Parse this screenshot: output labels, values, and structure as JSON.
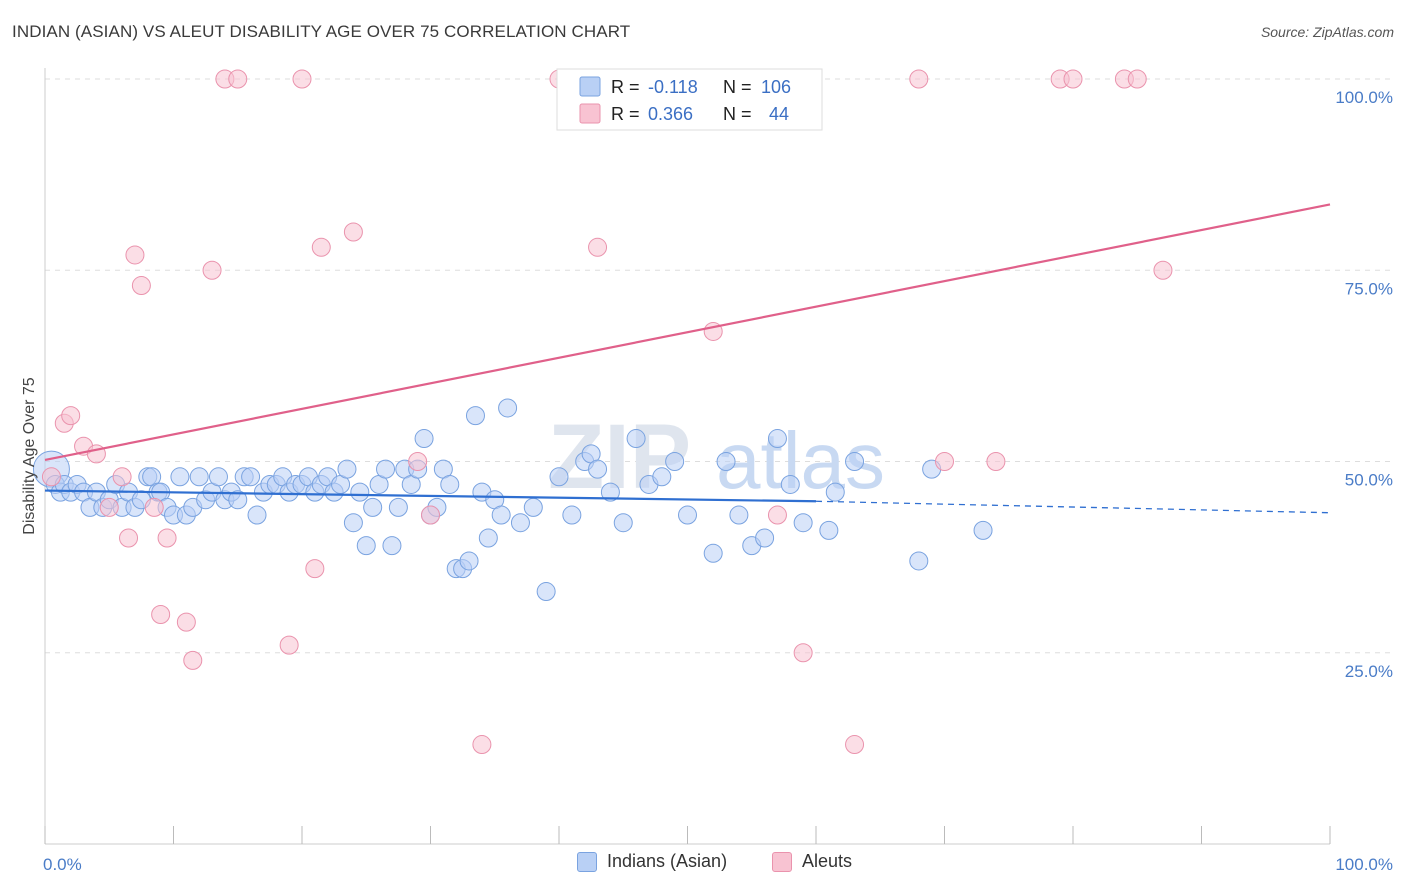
{
  "title": "INDIAN (ASIAN) VS ALEUT DISABILITY AGE OVER 75 CORRELATION CHART",
  "source": "Source: ZipAtlas.com",
  "watermark": {
    "zip": "ZIP",
    "atlas": "atlas"
  },
  "colors": {
    "blue_fill": "#b9d0f5",
    "blue_stroke": "#7aa3e0",
    "blue_line": "#2f6fd1",
    "pink_fill": "#f8c3d2",
    "pink_stroke": "#ea93ad",
    "pink_line": "#e0608a",
    "axis_label": "#4a7cc7",
    "grid": "#dddddd"
  },
  "legend": {
    "rows": [
      {
        "r_label": "R =",
        "r_value": "-0.118",
        "n_label": "N =",
        "n_value": "106"
      },
      {
        "r_label": "R =",
        "r_value": "0.366",
        "n_label": "N =",
        "n_value": "44"
      }
    ]
  },
  "bottom_legend": {
    "series1": "Indians (Asian)",
    "series2": "Aleuts"
  },
  "chart_data": {
    "type": "scatter",
    "title": "INDIAN (ASIAN) VS ALEUT DISABILITY AGE OVER 75 CORRELATION CHART",
    "xlabel": "",
    "ylabel": "Disability Age Over 75",
    "xlim": [
      0,
      100
    ],
    "ylim": [
      0,
      104
    ],
    "x_tick_labels": [
      "0.0%",
      "100.0%"
    ],
    "y_ticks": [
      25,
      50,
      75,
      100
    ],
    "y_tick_labels": [
      "25.0%",
      "50.0%",
      "75.0%",
      "100.0%"
    ],
    "grid": true,
    "series": [
      {
        "name": "Indians (Asian)",
        "r": -0.118,
        "n": 106,
        "trend": {
          "x0": 0,
          "y0": 46.2,
          "x1": 60,
          "y1": 44.8,
          "dashed_to_x": 100,
          "dashed_to_y": 43.3
        },
        "points": [
          [
            0.5,
            49,
            "L"
          ],
          [
            0.8,
            47
          ],
          [
            1.2,
            46
          ],
          [
            1.5,
            47
          ],
          [
            2.0,
            46
          ],
          [
            2.5,
            47
          ],
          [
            3.0,
            46
          ],
          [
            3.5,
            44
          ],
          [
            4,
            46
          ],
          [
            4.5,
            44
          ],
          [
            5,
            45
          ],
          [
            5.5,
            47
          ],
          [
            6,
            44
          ],
          [
            6.5,
            46
          ],
          [
            7,
            44
          ],
          [
            7.5,
            45
          ],
          [
            8,
            48
          ],
          [
            8.3,
            48
          ],
          [
            8.8,
            46
          ],
          [
            9,
            46
          ],
          [
            9.5,
            44
          ],
          [
            10,
            43
          ],
          [
            10.5,
            48
          ],
          [
            11,
            43
          ],
          [
            11.5,
            44
          ],
          [
            12,
            48
          ],
          [
            12.5,
            45
          ],
          [
            13,
            46
          ],
          [
            13.5,
            48
          ],
          [
            14,
            45
          ],
          [
            14.5,
            46
          ],
          [
            15,
            45
          ],
          [
            15.5,
            48
          ],
          [
            16,
            48
          ],
          [
            16.5,
            43
          ],
          [
            17,
            46
          ],
          [
            17.5,
            47
          ],
          [
            18,
            47
          ],
          [
            18.5,
            48
          ],
          [
            19,
            46
          ],
          [
            19.5,
            47
          ],
          [
            20,
            47
          ],
          [
            20.5,
            48
          ],
          [
            21,
            46
          ],
          [
            21.5,
            47
          ],
          [
            22,
            48
          ],
          [
            22.5,
            46
          ],
          [
            23,
            47
          ],
          [
            23.5,
            49
          ],
          [
            24,
            42
          ],
          [
            24.5,
            46
          ],
          [
            25,
            39
          ],
          [
            25.5,
            44
          ],
          [
            26,
            47
          ],
          [
            26.5,
            49
          ],
          [
            27,
            39
          ],
          [
            27.5,
            44
          ],
          [
            28,
            49
          ],
          [
            28.5,
            47
          ],
          [
            29,
            49
          ],
          [
            29.5,
            53
          ],
          [
            30,
            43
          ],
          [
            30.5,
            44
          ],
          [
            31,
            49
          ],
          [
            31.5,
            47
          ],
          [
            32,
            36
          ],
          [
            32.5,
            36
          ],
          [
            33,
            37
          ],
          [
            33.5,
            56
          ],
          [
            34,
            46
          ],
          [
            34.5,
            40
          ],
          [
            35,
            45
          ],
          [
            35.5,
            43
          ],
          [
            36,
            57
          ],
          [
            37,
            42
          ],
          [
            38,
            44
          ],
          [
            39,
            33
          ],
          [
            40,
            48
          ],
          [
            41,
            43
          ],
          [
            42,
            50
          ],
          [
            42.5,
            51
          ],
          [
            43,
            49
          ],
          [
            44,
            46
          ],
          [
            45,
            42
          ],
          [
            46,
            53
          ],
          [
            47,
            47
          ],
          [
            48,
            48
          ],
          [
            49,
            50
          ],
          [
            50,
            43
          ],
          [
            52,
            38
          ],
          [
            53,
            50
          ],
          [
            54,
            43
          ],
          [
            55,
            39
          ],
          [
            56,
            40
          ],
          [
            57,
            53
          ],
          [
            58,
            47
          ],
          [
            59,
            42
          ],
          [
            61,
            41
          ],
          [
            61.5,
            46
          ],
          [
            63,
            50
          ],
          [
            68,
            37
          ],
          [
            69,
            49
          ],
          [
            73,
            41
          ]
        ]
      },
      {
        "name": "Aleuts",
        "r": 0.366,
        "n": 44,
        "trend": {
          "x0": 0,
          "y0": 50.2,
          "x1": 100,
          "y1": 83.6
        },
        "points": [
          [
            0.5,
            48
          ],
          [
            1.5,
            55
          ],
          [
            2,
            56
          ],
          [
            3,
            52
          ],
          [
            4,
            51
          ],
          [
            5,
            44
          ],
          [
            6,
            48
          ],
          [
            6.5,
            40
          ],
          [
            7,
            77
          ],
          [
            7.5,
            73
          ],
          [
            8.5,
            44
          ],
          [
            9,
            30
          ],
          [
            9.5,
            40
          ],
          [
            11,
            29
          ],
          [
            11.5,
            24
          ],
          [
            13,
            75
          ],
          [
            14,
            100
          ],
          [
            15,
            100
          ],
          [
            19,
            26
          ],
          [
            20,
            100
          ],
          [
            21,
            36
          ],
          [
            21.5,
            78
          ],
          [
            24,
            80
          ],
          [
            29,
            50
          ],
          [
            30,
            43
          ],
          [
            34,
            13
          ],
          [
            40,
            100
          ],
          [
            43,
            78
          ],
          [
            50,
            100
          ],
          [
            52,
            67
          ],
          [
            57,
            43
          ],
          [
            58,
            100
          ],
          [
            59,
            25
          ],
          [
            63,
            13
          ],
          [
            68,
            100
          ],
          [
            70,
            50
          ],
          [
            74,
            50
          ],
          [
            79,
            100
          ],
          [
            80,
            100
          ],
          [
            84,
            100
          ],
          [
            85,
            100
          ],
          [
            87,
            75
          ]
        ]
      }
    ]
  }
}
